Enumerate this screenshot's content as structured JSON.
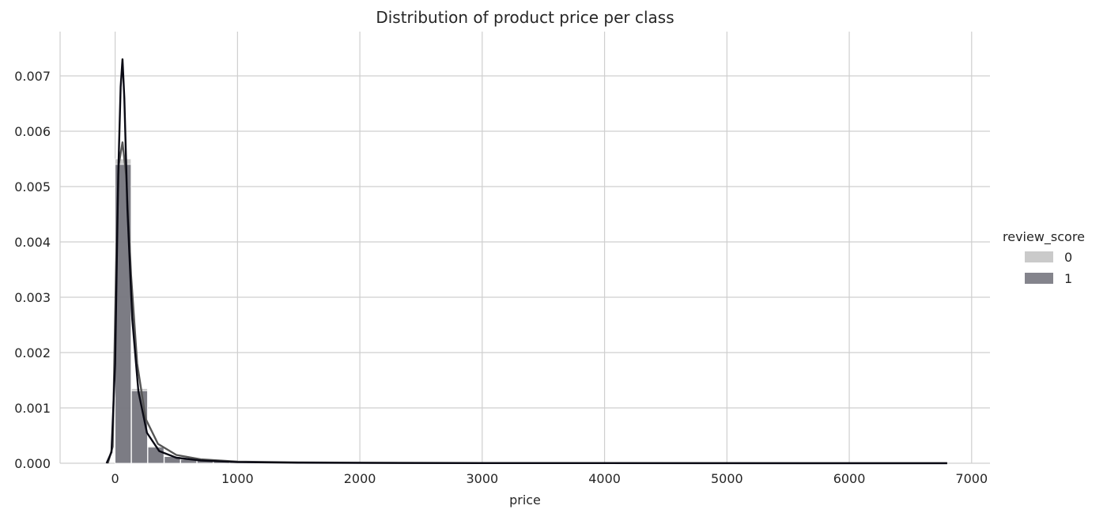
{
  "chart_data": {
    "type": "histogram",
    "title": "Distribution of product price per class",
    "xlabel": "price",
    "ylabel": "",
    "xlim": [
      -450,
      7150
    ],
    "ylim": [
      0,
      0.0078
    ],
    "xticks": [
      0,
      1000,
      2000,
      3000,
      4000,
      5000,
      6000,
      7000
    ],
    "xtick_labels": [
      "0",
      "1000",
      "2000",
      "3000",
      "4000",
      "5000",
      "6000",
      "7000"
    ],
    "yticks": [
      0,
      0.001,
      0.002,
      0.003,
      0.004,
      0.005,
      0.006,
      0.007
    ],
    "ytick_labels": [
      "0.000",
      "0.001",
      "0.002",
      "0.003",
      "0.004",
      "0.005",
      "0.006",
      "0.007"
    ],
    "grid": true,
    "legend": {
      "title": "review_score",
      "placement": "right"
    },
    "bin_width": 134,
    "series": [
      {
        "name": "0",
        "color": "#b8b8b8",
        "bins_start": [
          0,
          134,
          268,
          402,
          536,
          670,
          804,
          938,
          1072,
          1206,
          1340
        ],
        "densities": [
          0.0055,
          0.00135,
          0.00031,
          0.00013,
          8e-05,
          5e-05,
          3e-05,
          2.5e-05,
          2e-05,
          1.5e-05,
          1e-05
        ],
        "kde_x": [
          -60,
          -20,
          10,
          30,
          60,
          90,
          130,
          180,
          250,
          350,
          500,
          700,
          1000,
          1500,
          2000,
          3000,
          4000,
          5000,
          6000,
          6800
        ],
        "kde_y": [
          0,
          0.0003,
          0.0038,
          0.0054,
          0.0058,
          0.0052,
          0.0034,
          0.0018,
          0.0008,
          0.00035,
          0.00015,
          7e-05,
          3e-05,
          1.5e-05,
          1e-05,
          5e-06,
          3e-06,
          2e-06,
          1e-06,
          1e-06
        ]
      },
      {
        "name": "1",
        "color": "#6e6e78",
        "bins_start": [
          0,
          134,
          268,
          402,
          536,
          670,
          804,
          938,
          1072,
          1206,
          1340
        ],
        "densities": [
          0.0054,
          0.00131,
          0.00029,
          0.00012,
          7e-05,
          5e-05,
          3e-05,
          2e-05,
          1.5e-05,
          1e-05,
          1e-05
        ],
        "kde_x": [
          -70,
          -30,
          0,
          25,
          45,
          60,
          75,
          100,
          140,
          190,
          260,
          360,
          500,
          700,
          1000,
          1500,
          2000,
          3000,
          4000,
          5000,
          6000,
          6800
        ],
        "kde_y": [
          0,
          0.0002,
          0.0018,
          0.0052,
          0.0068,
          0.0073,
          0.0066,
          0.0046,
          0.0026,
          0.0013,
          0.00055,
          0.00022,
          0.0001,
          5e-05,
          2e-05,
          1e-05,
          6e-06,
          3e-06,
          2e-06,
          1e-06,
          1e-06,
          1e-06
        ]
      }
    ]
  }
}
